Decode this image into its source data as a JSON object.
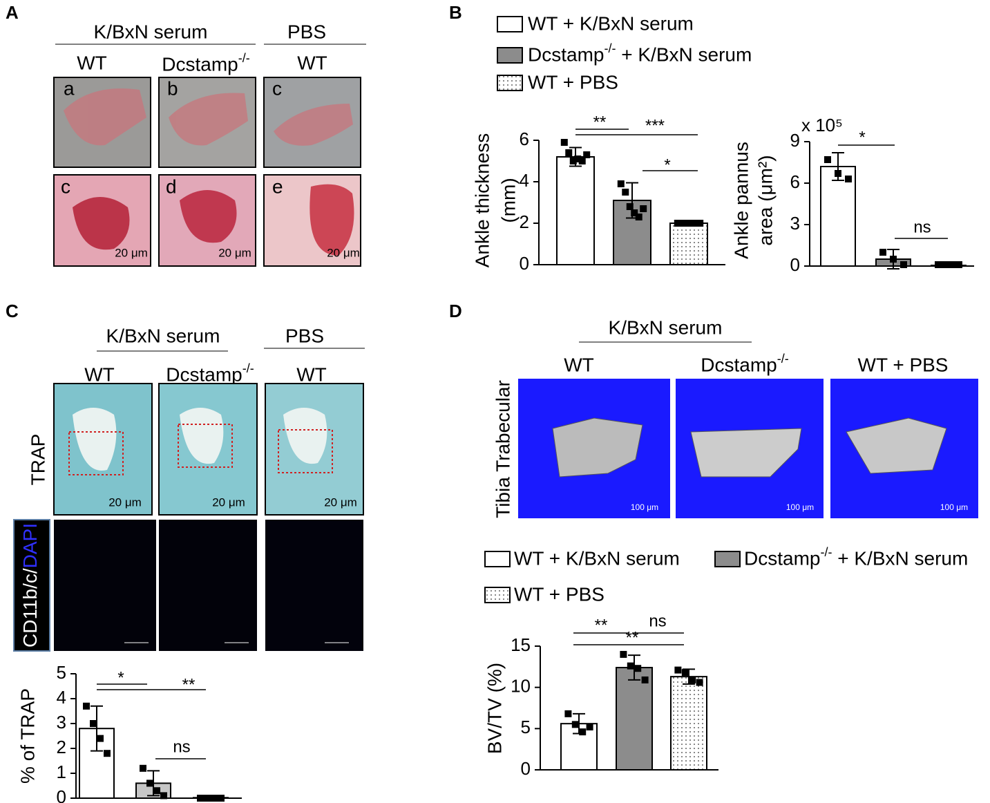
{
  "panels": {
    "A": {
      "label": "A",
      "groups": [
        "K/BxN serum",
        "PBS"
      ],
      "columns": [
        "WT",
        "Dcstamp-/-",
        "WT"
      ],
      "photo_letters": [
        "a",
        "b",
        "c"
      ],
      "histology_letters": [
        "c",
        "d",
        "e"
      ],
      "scale_bar": "20 μm"
    },
    "B": {
      "label": "B"
    },
    "C": {
      "label": "C",
      "groups": [
        "K/BxN serum",
        "PBS"
      ],
      "columns": [
        "WT",
        "Dcstamp-/-",
        "WT"
      ],
      "row_label": "TRAP",
      "stain": [
        "CD11b/c/",
        "DAPI"
      ],
      "scale_bar": "20 μm"
    },
    "D": {
      "label": "D",
      "group": "K/BxN serum",
      "columns": [
        "WT",
        "Dcstamp-/-",
        "WT + PBS"
      ],
      "row_label": "Tibia Trabecular",
      "scale_bar": "100 μm"
    }
  },
  "chart_data": [
    {
      "type": "bar",
      "y_label": [
        "Ankle thickness",
        "(mm)"
      ],
      "ylim": [
        0,
        6
      ],
      "yticks": [
        0,
        2,
        4,
        6
      ],
      "annotations": [
        "**",
        "***",
        "*"
      ],
      "series": [
        {
          "name": "WT + K/BxN serum",
          "color": "#ffffff",
          "values": [
            5.2
          ],
          "errors": [
            0.45
          ],
          "points": [
            5.9,
            5.4,
            5.0,
            5.1,
            5.0,
            5.3
          ]
        },
        {
          "name": "Dcstamp-/- + K/BxN serum",
          "color": "#8c8c8c",
          "values": [
            3.1
          ],
          "errors": [
            0.85
          ],
          "points": [
            3.9,
            3.5,
            2.8,
            2.5,
            2.3,
            2.7
          ]
        },
        {
          "name": "WT + PBS",
          "color": "#ffffff",
          "pattern": "dots",
          "values": [
            2.0
          ],
          "errors": [
            0.05
          ],
          "points": [
            2.0,
            2.0,
            2.0,
            2.0,
            2.0
          ]
        }
      ]
    },
    {
      "type": "bar",
      "y_label": [
        "Ankle pannus",
        "area (μm²)"
      ],
      "y_multiplier": "x 10⁵",
      "ylim": [
        0,
        9
      ],
      "yticks": [
        0,
        3,
        6,
        9
      ],
      "annotations": [
        "*",
        "ns"
      ],
      "series": [
        {
          "color": "#ffffff",
          "values": [
            7.2
          ],
          "errors": [
            1.0
          ],
          "points": [
            7.7,
            6.7,
            6.3
          ]
        },
        {
          "color": "#8c8c8c",
          "values": [
            0.5
          ],
          "errors": [
            0.7
          ],
          "points": [
            1.0,
            0.5,
            0.1
          ]
        },
        {
          "color": "#ffffff",
          "pattern": "dots",
          "values": [
            0.05
          ],
          "errors": [
            0
          ],
          "points": [
            0.1,
            0.1,
            0.1,
            0.1
          ]
        }
      ]
    },
    {
      "type": "bar",
      "y_label": [
        "% of TRAP"
      ],
      "ylim": [
        0,
        5
      ],
      "yticks": [
        0,
        1,
        2,
        3,
        4,
        5
      ],
      "annotations": [
        "*",
        "**",
        "ns"
      ],
      "series": [
        {
          "color": "#ffffff",
          "values": [
            2.8
          ],
          "errors": [
            0.9
          ],
          "points": [
            3.7,
            3.0,
            2.4,
            1.8
          ]
        },
        {
          "color": "#c6c6c6",
          "values": [
            0.6
          ],
          "errors": [
            0.5
          ],
          "points": [
            1.2,
            0.6,
            0.3,
            0.1
          ]
        },
        {
          "color": "#ffffff",
          "values": [
            0.02
          ],
          "errors": [
            0
          ],
          "points": [
            0,
            0,
            0,
            0
          ]
        }
      ]
    },
    {
      "type": "bar",
      "y_label": [
        "BV/TV (%)"
      ],
      "ylim": [
        0,
        15
      ],
      "yticks": [
        0,
        5,
        10,
        15
      ],
      "annotations": [
        "**",
        "**",
        "ns"
      ],
      "series": [
        {
          "name": "WT + K/BxN serum",
          "color": "#ffffff",
          "values": [
            5.6
          ],
          "errors": [
            1.2
          ],
          "points": [
            6.8,
            5.5,
            4.6,
            5.2
          ]
        },
        {
          "name": "Dcstamp-/- + K/BxN serum",
          "color": "#8c8c8c",
          "values": [
            12.4
          ],
          "errors": [
            1.5
          ],
          "points": [
            14.0,
            12.6,
            12.3,
            10.9
          ]
        },
        {
          "name": "WT + PBS",
          "color": "#ffffff",
          "pattern": "dots",
          "values": [
            11.3
          ],
          "errors": [
            0.9
          ],
          "points": [
            12.1,
            11.8,
            10.9,
            10.6
          ]
        }
      ]
    }
  ]
}
